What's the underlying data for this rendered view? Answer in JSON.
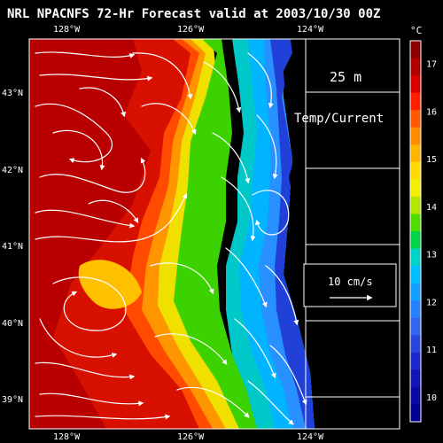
{
  "title": "NRL NPACNFS 72-Hr Forecast valid at 2003/10/30 00Z",
  "depth_label": "25 m",
  "field_label": "Temp/Current",
  "vector_scale_label": "10 cm/s",
  "colorbar": {
    "unit": "°C",
    "ticks": [
      "17",
      "16",
      "15",
      "14",
      "13",
      "12",
      "11",
      "10"
    ],
    "colors": [
      "#8a0000",
      "#b00000",
      "#d80000",
      "#ff1e00",
      "#ff5a00",
      "#ff8c00",
      "#ffb400",
      "#ffdc00",
      "#f0f000",
      "#b4e600",
      "#50dc00",
      "#00d24a",
      "#00d2c8",
      "#00beff",
      "#14a0ff",
      "#2882ff",
      "#3264f0",
      "#2846dc",
      "#1e28c8",
      "#1414b4",
      "#0a0aa0",
      "#000090"
    ]
  },
  "axes": {
    "top_lon": [
      "128°W",
      "126°W",
      "124°W"
    ],
    "bottom_lon": [
      "128°W",
      "126°W",
      "124°W"
    ],
    "lat": [
      "43°N",
      "42°N",
      "41°N",
      "40°N",
      "39°N"
    ]
  }
}
